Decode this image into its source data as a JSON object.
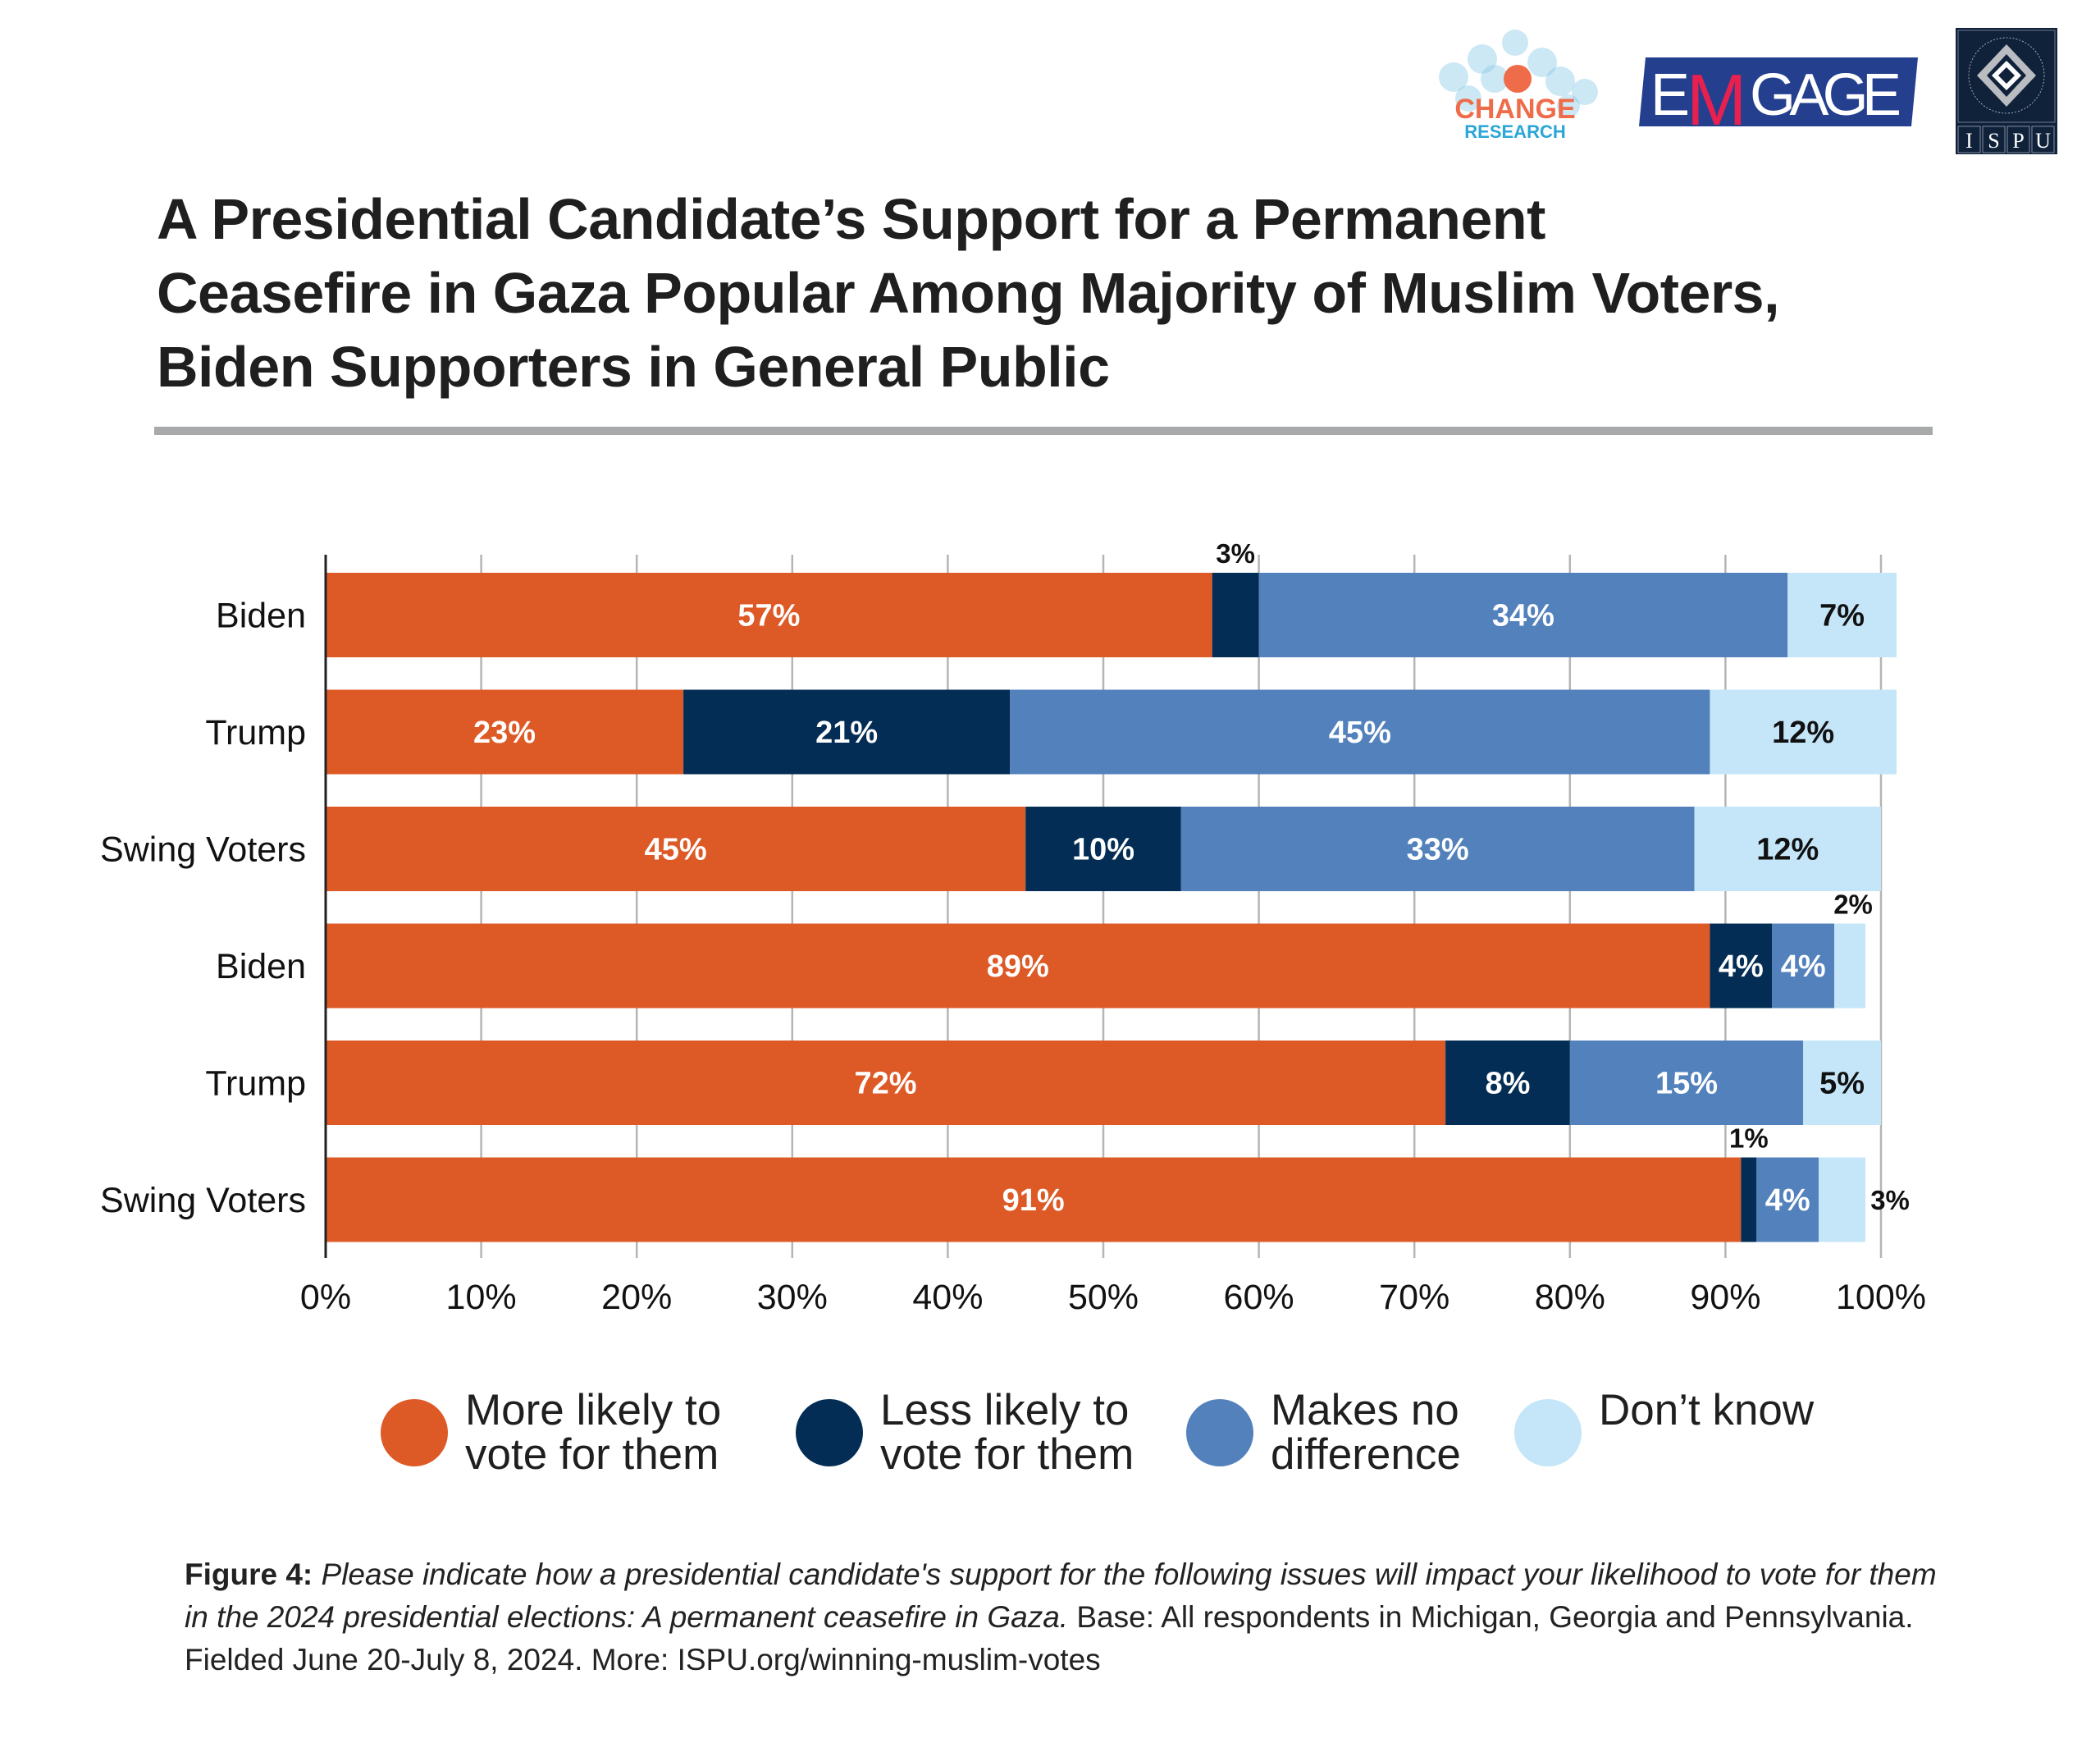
{
  "logos": {
    "change_research": {
      "line1": "CHANGE",
      "line2": "RESEARCH"
    },
    "emgage": {
      "prefix": "E",
      "accent": "M",
      "suffix": "GAGE"
    },
    "ispu": {
      "ring_text": "INSTITUTE FOR SOCIAL POLICY AND UNDERSTANDING",
      "letters": [
        "I",
        "S",
        "P",
        "U"
      ]
    }
  },
  "title_lines": [
    "A Presidential Candidate’s Support for a Permanent",
    "Ceasefire in Gaza Popular Among Majority of Muslim Voters,",
    "Biden Supporters in General Public"
  ],
  "colors": {
    "more_likely": "#DD5A26",
    "less_likely": "#032D54",
    "no_difference": "#5281BC",
    "dont_know": "#C4E6F8",
    "axis": "#222222",
    "grid": "#b5b5b5",
    "divider": "#a8a9ab"
  },
  "chart_data": {
    "type": "bar",
    "orientation": "horizontal",
    "stacked": true,
    "title": "A Presidential Candidate’s Support for a Permanent Ceasefire in Gaza Popular Among Majority of Muslim Voters, Biden Supporters in General Public",
    "xlabel": "",
    "ylabel": "",
    "xlim": [
      0,
      100
    ],
    "x_ticks": [
      "0%",
      "10%",
      "20%",
      "30%",
      "40%",
      "50%",
      "60%",
      "70%",
      "80%",
      "90%",
      "100%"
    ],
    "grid": true,
    "legend_position": "bottom",
    "categories": [
      "Biden",
      "Trump",
      "Swing Voters",
      "Biden",
      "Trump",
      "Swing Voters"
    ],
    "series": [
      {
        "name": "More likely to vote for them",
        "color_key": "more_likely",
        "values": [
          57,
          23,
          45,
          89,
          72,
          91
        ]
      },
      {
        "name": "Less likely to vote for them",
        "color_key": "less_likely",
        "values": [
          3,
          21,
          10,
          4,
          8,
          1
        ]
      },
      {
        "name": "Makes no difference",
        "color_key": "no_difference",
        "values": [
          34,
          45,
          33,
          4,
          15,
          4
        ]
      },
      {
        "name": "Don’t know",
        "color_key": "dont_know",
        "values": [
          7,
          12,
          12,
          2,
          5,
          3
        ]
      }
    ],
    "value_labels": [
      [
        "57%",
        "3%",
        "34%",
        "7%"
      ],
      [
        "23%",
        "21%",
        "45%",
        "12%"
      ],
      [
        "45%",
        "10%",
        "33%",
        "12%"
      ],
      [
        "89%",
        "4%",
        "4%",
        "2%"
      ],
      [
        "72%",
        "8%",
        "15%",
        "5%"
      ],
      [
        "91%",
        "1%",
        "4%",
        "3%"
      ]
    ]
  },
  "legend": [
    {
      "label": "More likely to\nvote for them",
      "color_key": "more_likely"
    },
    {
      "label": "Less likely to\nvote for them",
      "color_key": "less_likely"
    },
    {
      "label": "Makes no\ndifference",
      "color_key": "no_difference"
    },
    {
      "label": "Don’t know",
      "color_key": "dont_know"
    }
  ],
  "footnote": {
    "label": "Figure 4:",
    "question": "Please indicate how a presidential candidate's support for the following issues will impact your likelihood to vote for them in the 2024 presidential elections: A permanent ceasefire in Gaza.",
    "details": "Base: All respondents in Michigan, Georgia and Pennsylvania. Fielded June 20-July 8, 2024. More: ISPU.org/winning-muslim-votes"
  }
}
